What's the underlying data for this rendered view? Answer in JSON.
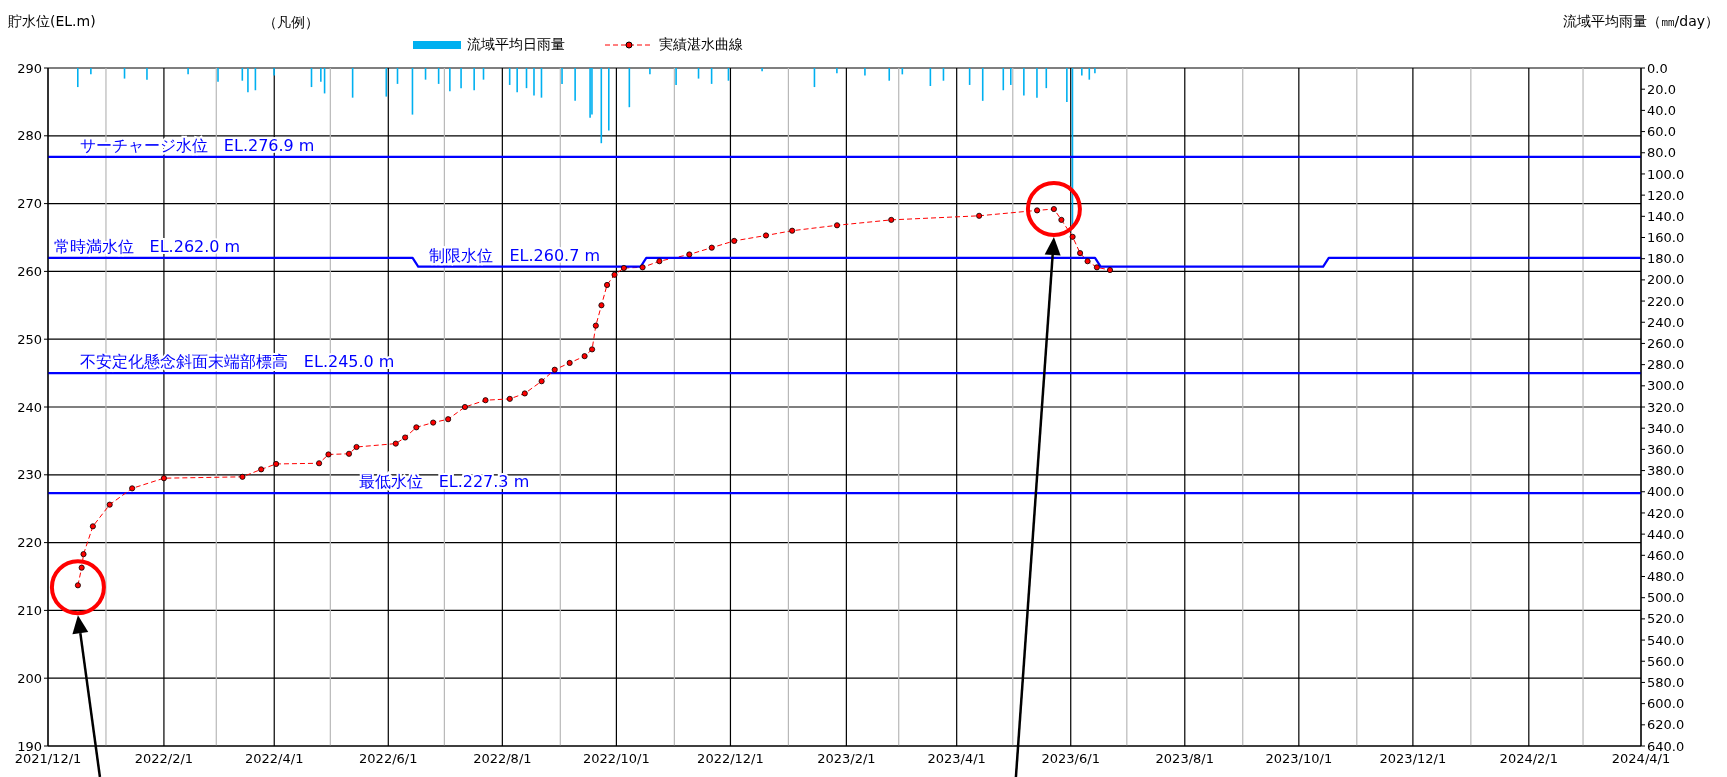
{
  "chart_data": {
    "type": "line",
    "ylabel": "貯水位(EL.m)",
    "y2label": "流域平均雨量（㎜/day）",
    "legend_title": "（凡例）",
    "legend": "top",
    "grid": true,
    "xlim": [
      "2021-12-01",
      "2024-04-01"
    ],
    "xticks": [
      {
        "value": "2021-12-01",
        "label": "2021/12/1"
      },
      {
        "value": "2022-01-01",
        "label": null
      },
      {
        "value": "2022-02-01",
        "label": "2022/2/1"
      },
      {
        "value": "2022-03-01",
        "label": null
      },
      {
        "value": "2022-04-01",
        "label": "2022/4/1"
      },
      {
        "value": "2022-05-01",
        "label": null
      },
      {
        "value": "2022-06-01",
        "label": "2022/6/1"
      },
      {
        "value": "2022-07-01",
        "label": null
      },
      {
        "value": "2022-08-01",
        "label": "2022/8/1"
      },
      {
        "value": "2022-09-01",
        "label": null
      },
      {
        "value": "2022-10-01",
        "label": "2022/10/1"
      },
      {
        "value": "2022-11-01",
        "label": null
      },
      {
        "value": "2022-12-01",
        "label": "2022/12/1"
      },
      {
        "value": "2023-01-01",
        "label": null
      },
      {
        "value": "2023-02-01",
        "label": "2023/2/1"
      },
      {
        "value": "2023-03-01",
        "label": null
      },
      {
        "value": "2023-04-01",
        "label": "2023/4/1"
      },
      {
        "value": "2023-05-01",
        "label": null
      },
      {
        "value": "2023-06-01",
        "label": "2023/6/1"
      },
      {
        "value": "2023-07-01",
        "label": null
      },
      {
        "value": "2023-08-01",
        "label": "2023/8/1"
      },
      {
        "value": "2023-09-01",
        "label": null
      },
      {
        "value": "2023-10-01",
        "label": "2023/10/1"
      },
      {
        "value": "2023-11-01",
        "label": null
      },
      {
        "value": "2023-12-01",
        "label": "2023/12/1"
      },
      {
        "value": "2024-01-01",
        "label": null
      },
      {
        "value": "2024-02-01",
        "label": "2024/2/1"
      },
      {
        "value": "2024-03-01",
        "label": null
      },
      {
        "value": "2024-04-01",
        "label": "2024/4/1"
      }
    ],
    "ylim": [
      190,
      290
    ],
    "yticks": [
      190,
      200,
      210,
      220,
      230,
      240,
      250,
      260,
      270,
      280,
      290
    ],
    "y2lim": [
      640,
      0
    ],
    "y2ticks": [
      {
        "value": 0,
        "label": "0.0"
      },
      {
        "value": 20,
        "label": "20.0"
      },
      {
        "value": 40,
        "label": "40.0"
      },
      {
        "value": 60,
        "label": "60.0"
      },
      {
        "value": 80,
        "label": "80.0"
      },
      {
        "value": 100,
        "label": "100.0"
      },
      {
        "value": 120,
        "label": "120.0"
      },
      {
        "value": 140,
        "label": "140.0"
      },
      {
        "value": 160,
        "label": "160.0"
      },
      {
        "value": 180,
        "label": "180.0"
      },
      {
        "value": 200,
        "label": "200.0"
      },
      {
        "value": 220,
        "label": "220.0"
      },
      {
        "value": 240,
        "label": "240.0"
      },
      {
        "value": 260,
        "label": "260.0"
      },
      {
        "value": 280,
        "label": "280.0"
      },
      {
        "value": 300,
        "label": "300.0"
      },
      {
        "value": 320,
        "label": "320.0"
      },
      {
        "value": 340,
        "label": "340.0"
      },
      {
        "value": 360,
        "label": "360.0"
      },
      {
        "value": 380,
        "label": "380.0"
      },
      {
        "value": 400,
        "label": "400.0"
      },
      {
        "value": 420,
        "label": "420.0"
      },
      {
        "value": 440,
        "label": "440.0"
      },
      {
        "value": 460,
        "label": "460.0"
      },
      {
        "value": 480,
        "label": "480.0"
      },
      {
        "value": 500,
        "label": "500.0"
      },
      {
        "value": 520,
        "label": "520.0"
      },
      {
        "value": 540,
        "label": "540.0"
      },
      {
        "value": 560,
        "label": "560.0"
      },
      {
        "value": 580,
        "label": "580.0"
      },
      {
        "value": 600,
        "label": "600.0"
      },
      {
        "value": 620,
        "label": "620.0"
      },
      {
        "value": 640,
        "label": "640.0"
      }
    ],
    "series": [
      {
        "name": "流域平均日雨量",
        "type": "bar",
        "axis": "y2",
        "color": "#00b0f0",
        "x": [
          "2021-12-17",
          "2021-12-24",
          "2022-01-11",
          "2022-01-23",
          "2022-02-14",
          "2022-03-02",
          "2022-03-15",
          "2022-03-18",
          "2022-03-22",
          "2022-04-01",
          "2022-04-21",
          "2022-04-26",
          "2022-04-28",
          "2022-05-13",
          "2022-05-31",
          "2022-06-06",
          "2022-06-14",
          "2022-06-21",
          "2022-06-28",
          "2022-07-04",
          "2022-07-10",
          "2022-07-17",
          "2022-07-22",
          "2022-08-05",
          "2022-08-09",
          "2022-08-14",
          "2022-08-18",
          "2022-08-22",
          "2022-09-02",
          "2022-09-09",
          "2022-09-17",
          "2022-09-18",
          "2022-09-23",
          "2022-09-27",
          "2022-10-08",
          "2022-10-19",
          "2022-11-02",
          "2022-11-14",
          "2022-11-21",
          "2022-11-30",
          "2022-12-18",
          "2023-01-15",
          "2023-01-27",
          "2023-02-11",
          "2023-02-24",
          "2023-03-03",
          "2023-03-18",
          "2023-03-25",
          "2023-04-08",
          "2023-04-15",
          "2023-04-26",
          "2023-04-30",
          "2023-05-07",
          "2023-05-14",
          "2023-05-19",
          "2023-05-30",
          "2023-06-02",
          "2023-06-07",
          "2023-06-11",
          "2023-06-14"
        ],
        "values": [
          18,
          6,
          10,
          11,
          6,
          13,
          12,
          23,
          21,
          7,
          18,
          13,
          24,
          28,
          27,
          15,
          44,
          11,
          15,
          22,
          19,
          21,
          11,
          16,
          23,
          19,
          26,
          28,
          15,
          31,
          47,
          44,
          71,
          59,
          37,
          6,
          16,
          10,
          15,
          12,
          3,
          18,
          5,
          7,
          12,
          6,
          17,
          12,
          16,
          31,
          21,
          16,
          26,
          28,
          19,
          32,
          148,
          7,
          11,
          5
        ]
      },
      {
        "name": "実績湛水曲線",
        "axis": "y",
        "color": "#ff0000",
        "marker": "circle",
        "line_style": "dashed",
        "x": [
          "2021-12-17",
          "2021-12-19",
          "2021-12-20",
          "2021-12-25",
          "2022-01-03",
          "2022-01-15",
          "2022-02-01",
          "2022-03-15",
          "2022-03-25",
          "2022-04-02",
          "2022-04-25",
          "2022-04-30",
          "2022-05-11",
          "2022-05-15",
          "2022-06-05",
          "2022-06-10",
          "2022-06-16",
          "2022-06-25",
          "2022-07-03",
          "2022-07-12",
          "2022-07-23",
          "2022-08-05",
          "2022-08-13",
          "2022-08-22",
          "2022-08-29",
          "2022-09-06",
          "2022-09-14",
          "2022-09-18",
          "2022-09-20",
          "2022-09-23",
          "2022-09-26",
          "2022-09-30",
          "2022-10-05",
          "2022-10-15",
          "2022-10-24",
          "2022-11-09",
          "2022-11-21",
          "2022-12-03",
          "2022-12-20",
          "2023-01-03",
          "2023-01-27",
          "2023-02-25",
          "2023-04-13",
          "2023-05-14",
          "2023-05-23",
          "2023-05-27",
          "2023-06-02",
          "2023-06-06",
          "2023-06-10",
          "2023-06-15",
          "2023-06-22"
        ],
        "values": [
          213.7,
          216.3,
          218.3,
          222.4,
          225.6,
          228.0,
          229.5,
          229.7,
          230.8,
          231.6,
          231.7,
          233.0,
          233.1,
          234.1,
          234.6,
          235.5,
          237.0,
          237.7,
          238.2,
          240.0,
          241.0,
          241.2,
          242.0,
          243.8,
          245.5,
          246.5,
          247.5,
          248.5,
          252.0,
          255.0,
          258.0,
          259.5,
          260.5,
          260.6,
          261.5,
          262.5,
          263.5,
          264.5,
          265.3,
          266.0,
          266.8,
          267.6,
          268.2,
          269.0,
          269.2,
          267.6,
          265.1,
          262.7,
          261.5,
          260.6,
          260.2
        ]
      },
      {
        "axis": "y",
        "color": "#0000ff",
        "marker": "none",
        "line_style": "solid",
        "x": [
          "2021-12-01",
          "2022-06-14",
          "2022-06-17",
          "2022-10-14",
          "2022-10-17",
          "2023-06-14",
          "2023-06-17",
          "2023-10-14",
          "2023-10-17",
          "2024-04-01"
        ],
        "values": [
          262.0,
          262.0,
          260.7,
          260.7,
          262.0,
          262.0,
          260.7,
          260.7,
          262.0,
          262.0
        ]
      }
    ],
    "ref_lines": [
      {
        "axis": "y",
        "value": 276.9,
        "label": "サーチャージ水位　EL.276.9 m",
        "color": "#0000ff"
      },
      {
        "axis": "y",
        "value": 245.0,
        "label": "不安定化懸念斜面末端部標高　EL.245.0 m",
        "color": "#0000ff"
      },
      {
        "axis": "y",
        "value": 227.3,
        "label": "最低水位　EL.227.3 m",
        "color": "#0000ff"
      }
    ],
    "annotations": [
      {
        "text": "常時満水位　EL.262.0 m",
        "x": "2021-12-04",
        "y": 262.0
      },
      {
        "text": "制限水位　EL.260.7 m",
        "x": "2022-06-23",
        "y": 260.7
      }
    ]
  }
}
